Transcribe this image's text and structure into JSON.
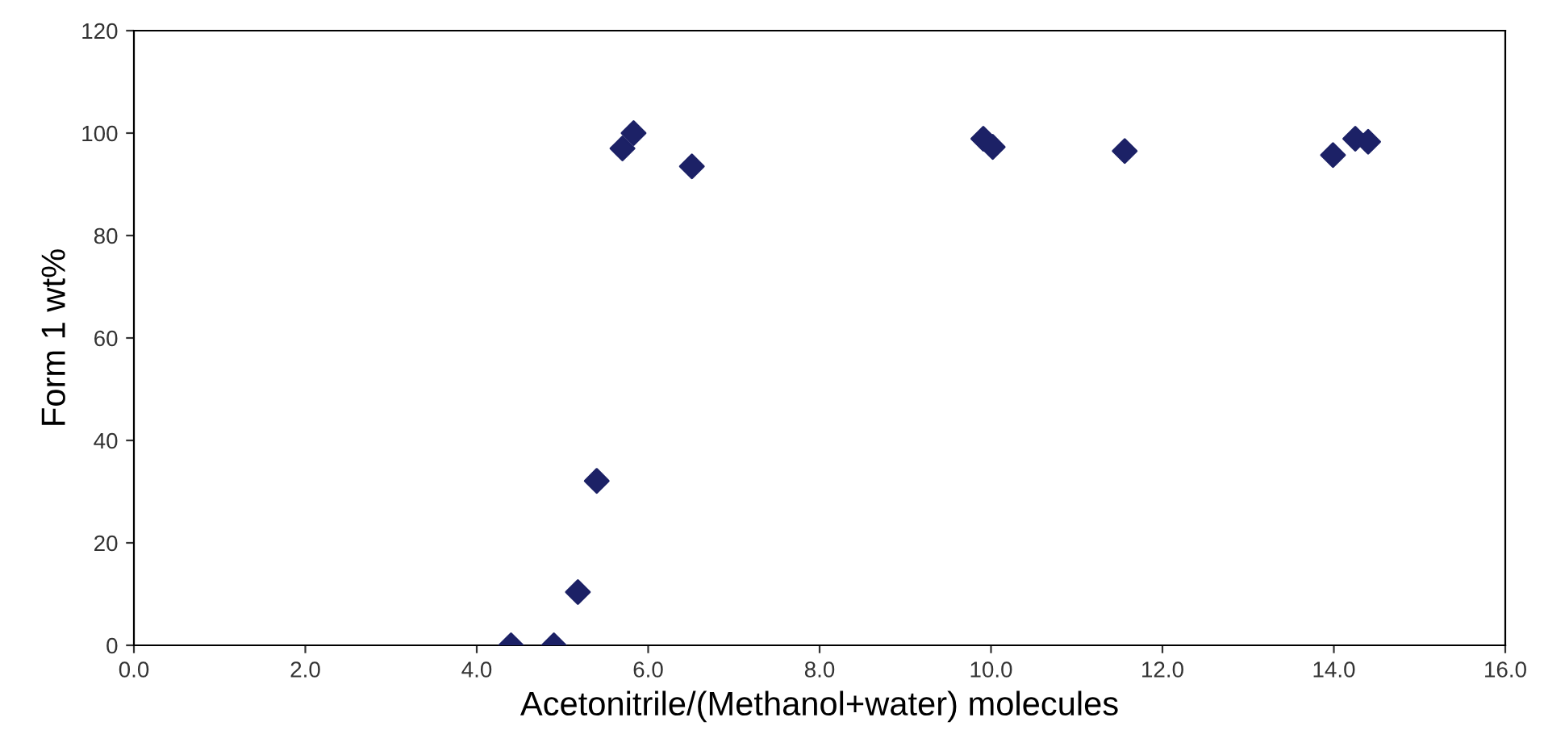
{
  "chart_data": {
    "type": "scatter",
    "xlabel": "Acetonitrile/(Methanol+water) molecules",
    "ylabel": "Form 1 wt%",
    "x": [
      4.4,
      4.9,
      5.18,
      5.4,
      5.7,
      5.83,
      6.51,
      9.91,
      10.02,
      11.56,
      13.99,
      14.25,
      14.4
    ],
    "series": [
      {
        "color": "#1c2166",
        "values": [
          0,
          0,
          10.4,
          32.1,
          97.0,
          100,
          93.5,
          98.9,
          97.3,
          96.5,
          95.7,
          98.9,
          98.3
        ]
      }
    ],
    "xlim": [
      0,
      16
    ],
    "ylim": [
      0,
      120
    ],
    "xticks": [
      {
        "value": 0,
        "label": "0.0"
      },
      {
        "value": 2,
        "label": "2.0"
      },
      {
        "value": 4,
        "label": "4.0"
      },
      {
        "value": 6,
        "label": "6.0"
      },
      {
        "value": 8,
        "label": "8.0"
      },
      {
        "value": 10,
        "label": "10.0"
      },
      {
        "value": 12,
        "label": "12.0"
      },
      {
        "value": 14,
        "label": "14.0"
      },
      {
        "value": 16,
        "label": "16.0"
      }
    ],
    "yticks": [
      0,
      20,
      40,
      60,
      80,
      100,
      120
    ],
    "marker": "diamond",
    "grid": false,
    "legend": false
  }
}
